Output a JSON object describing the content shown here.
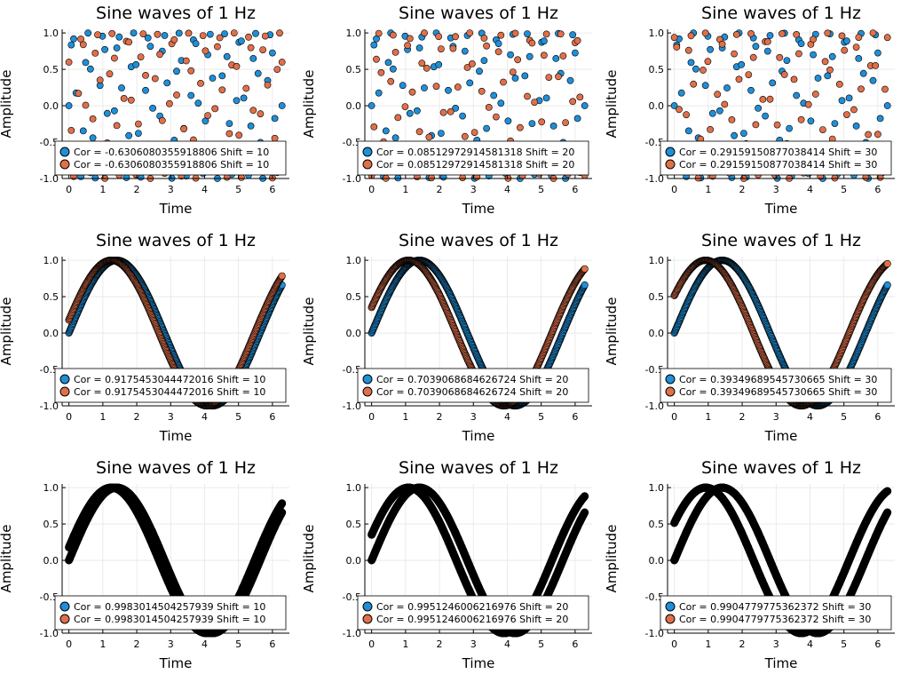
{
  "colors": {
    "series1": "#1f8fd8",
    "series2": "#e0704a",
    "dense": "#000000"
  },
  "chart_data": [
    {
      "type": "scatter",
      "title": "Sine waves of 1 Hz",
      "xlabel": "Time",
      "ylabel": "Amplitude",
      "xlim": [
        -0.2,
        6.5
      ],
      "ylim": [
        -1,
        1.05
      ],
      "xticks": [
        "0",
        "1",
        "2",
        "3",
        "4",
        "5",
        "6"
      ],
      "yticks": [
        "-1.0",
        "-0.5",
        "0.0",
        "0.5",
        "1.0"
      ],
      "grid": true,
      "legend_placement": "bottom-left",
      "legend": [
        "Cor = -0.6306080355918806 Shift = 10",
        "Cor = -0.6306080355918806 Shift = 10"
      ],
      "sampling": "sparse",
      "n_points": 90,
      "shift": 10
    },
    {
      "type": "scatter",
      "title": "Sine waves of 1 Hz",
      "xlabel": "Time",
      "ylabel": "Amplitude",
      "xlim": [
        -0.2,
        6.5
      ],
      "ylim": [
        -1,
        1.05
      ],
      "xticks": [
        "0",
        "1",
        "2",
        "3",
        "4",
        "5",
        "6"
      ],
      "yticks": [
        "-1.0",
        "-0.5",
        "0.0",
        "0.5",
        "1.0"
      ],
      "grid": true,
      "legend_placement": "bottom-left",
      "legend": [
        "Cor = 0.08512972914581318 Shift = 20",
        "Cor = 0.08512972914581318 Shift = 20"
      ],
      "sampling": "sparse",
      "n_points": 90,
      "shift": 20
    },
    {
      "type": "scatter",
      "title": "Sine waves of 1 Hz",
      "xlabel": "Time",
      "ylabel": "Amplitude",
      "xlim": [
        -0.2,
        6.5
      ],
      "ylim": [
        -1,
        1.05
      ],
      "xticks": [
        "0",
        "1",
        "2",
        "3",
        "4",
        "5",
        "6"
      ],
      "yticks": [
        "-1.0",
        "-0.5",
        "0.0",
        "0.5",
        "1.0"
      ],
      "grid": true,
      "legend_placement": "bottom-left",
      "legend": [
        "Cor = 0.29159150877038414 Shift = 30",
        "Cor = 0.29159150877038414 Shift = 30"
      ],
      "sampling": "sparse",
      "n_points": 90,
      "shift": 30
    },
    {
      "type": "scatter",
      "title": "Sine waves of 1 Hz",
      "xlabel": "Time",
      "ylabel": "Amplitude",
      "xlim": [
        -0.2,
        6.5
      ],
      "ylim": [
        -1,
        1.05
      ],
      "xticks": [
        "0",
        "1",
        "2",
        "3",
        "4",
        "5",
        "6"
      ],
      "yticks": [
        "-1.0",
        "-0.5",
        "0.0",
        "0.5",
        "1.0"
      ],
      "grid": true,
      "legend_placement": "bottom-left",
      "legend": [
        "Cor = 0.9175453044472016 Shift = 10",
        "Cor = 0.9175453044472016 Shift = 10"
      ],
      "sampling": "medium",
      "n_points": 400,
      "shift": 10
    },
    {
      "type": "scatter",
      "title": "Sine waves of 1 Hz",
      "xlabel": "Time",
      "ylabel": "Amplitude",
      "xlim": [
        -0.2,
        6.5
      ],
      "ylim": [
        -1,
        1.05
      ],
      "xticks": [
        "0",
        "1",
        "2",
        "3",
        "4",
        "5",
        "6"
      ],
      "yticks": [
        "-1.0",
        "-0.5",
        "0.0",
        "0.5",
        "1.0"
      ],
      "grid": true,
      "legend_placement": "bottom-left",
      "legend": [
        "Cor = 0.7039068684626724 Shift = 20",
        "Cor = 0.7039068684626724 Shift = 20"
      ],
      "sampling": "medium",
      "n_points": 400,
      "shift": 20
    },
    {
      "type": "scatter",
      "title": "Sine waves of 1 Hz",
      "xlabel": "Time",
      "ylabel": "Amplitude",
      "xlim": [
        -0.2,
        6.5
      ],
      "ylim": [
        -1,
        1.05
      ],
      "xticks": [
        "0",
        "1",
        "2",
        "3",
        "4",
        "5",
        "6"
      ],
      "yticks": [
        "-1.0",
        "-0.5",
        "0.0",
        "0.5",
        "1.0"
      ],
      "grid": true,
      "legend_placement": "bottom-left",
      "legend": [
        "Cor = 0.39349689545730665 Shift = 30",
        "Cor = 0.39349689545730665 Shift = 30"
      ],
      "sampling": "medium",
      "n_points": 400,
      "shift": 30
    },
    {
      "type": "scatter",
      "title": "Sine waves of 1 Hz",
      "xlabel": "Time",
      "ylabel": "Amplitude",
      "xlim": [
        -0.2,
        6.5
      ],
      "ylim": [
        -1,
        1.05
      ],
      "xticks": [
        "0",
        "1",
        "2",
        "3",
        "4",
        "5",
        "6"
      ],
      "yticks": [
        "-1.0",
        "-0.5",
        "0.0",
        "0.5",
        "1.0"
      ],
      "grid": true,
      "legend_placement": "bottom-left",
      "legend": [
        "Cor = 0.9983014504257939 Shift = 10",
        "Cor = 0.9983014504257939 Shift = 10"
      ],
      "sampling": "dense",
      "n_points": 1000,
      "shift": 10
    },
    {
      "type": "scatter",
      "title": "Sine waves of 1 Hz",
      "xlabel": "Time",
      "ylabel": "Amplitude",
      "xlim": [
        -0.2,
        6.5
      ],
      "ylim": [
        -1,
        1.05
      ],
      "xticks": [
        "0",
        "1",
        "2",
        "3",
        "4",
        "5",
        "6"
      ],
      "yticks": [
        "-1.0",
        "-0.5",
        "0.0",
        "0.5",
        "1.0"
      ],
      "grid": true,
      "legend_placement": "bottom-left",
      "legend": [
        "Cor = 0.9951246006216976 Shift = 20",
        "Cor = 0.9951246006216976 Shift = 20"
      ],
      "sampling": "dense",
      "n_points": 1000,
      "shift": 20
    },
    {
      "type": "scatter",
      "title": "Sine waves of 1 Hz",
      "xlabel": "Time",
      "ylabel": "Amplitude",
      "xlim": [
        -0.2,
        6.5
      ],
      "ylim": [
        -1,
        1.05
      ],
      "xticks": [
        "0",
        "1",
        "2",
        "3",
        "4",
        "5",
        "6"
      ],
      "yticks": [
        "-1.0",
        "-0.5",
        "0.0",
        "0.5",
        "1.0"
      ],
      "grid": true,
      "legend_placement": "bottom-left",
      "legend": [
        "Cor = 0.9904779775362372 Shift = 30",
        "Cor = 0.9904779775362372 Shift = 30"
      ],
      "sampling": "dense",
      "n_points": 1000,
      "shift": 30
    }
  ]
}
